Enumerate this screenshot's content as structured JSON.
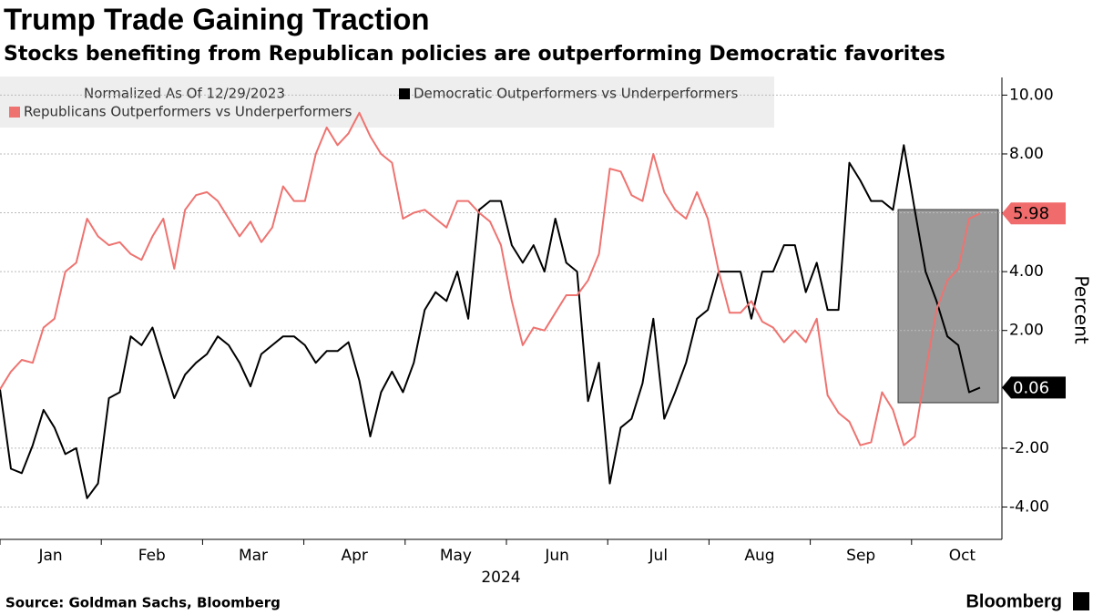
{
  "chart_data": {
    "type": "line",
    "title": "Trump Trade Gaining Traction",
    "subtitle": "Stocks benefiting from Republican policies are outperforming Democratic favorites",
    "legend_title": "Normalized As Of 12/29/2023",
    "ylabel": "Percent",
    "xlabel": "2024",
    "xticks": [
      "Jan",
      "Feb",
      "Mar",
      "Apr",
      "May",
      "Jun",
      "Jul",
      "Aug",
      "Sep",
      "Oct"
    ],
    "ylim": [
      -5.1,
      10.6
    ],
    "yticks": [
      {
        "value": -4,
        "label": "-4.00"
      },
      {
        "value": -2,
        "label": "-2.00"
      },
      {
        "value": 2,
        "label": "2.00"
      },
      {
        "value": 4,
        "label": "4.00"
      },
      {
        "value": 6,
        "label": "6.00"
      },
      {
        "value": 8,
        "label": "8.00"
      },
      {
        "value": 10,
        "label": "10.00"
      }
    ],
    "grid": true,
    "series": [
      {
        "name": "Democratic Outperformers vs Underperformers",
        "color": "#000000",
        "values": [
          0,
          -2.7,
          -2.85,
          -1.9,
          -0.7,
          -1.3,
          -2.2,
          -2.0,
          -3.7,
          -3.2,
          -0.3,
          -0.1,
          1.8,
          1.5,
          2.1,
          0.9,
          -0.3,
          0.5,
          0.9,
          1.2,
          1.8,
          1.5,
          0.9,
          0.1,
          1.2,
          1.5,
          1.8,
          1.8,
          1.5,
          0.9,
          1.3,
          1.3,
          1.6,
          0.3,
          -1.6,
          -0.1,
          0.6,
          -0.1,
          0.9,
          2.7,
          3.3,
          3.0,
          4.0,
          2.4,
          6.1,
          6.4,
          6.4,
          4.9,
          4.3,
          4.9,
          4.0,
          5.8,
          4.3,
          4.0,
          -0.4,
          0.9,
          -3.2,
          -1.3,
          -1.0,
          0.2,
          2.4,
          -1.0,
          -0.1,
          0.9,
          2.4,
          2.7,
          4.0,
          4.0,
          4.0,
          2.4,
          4.0,
          4.0,
          4.9,
          4.9,
          3.3,
          4.3,
          2.7,
          2.7,
          7.7,
          7.1,
          6.4,
          6.4,
          6.1,
          8.3,
          6.1,
          4.0,
          3.0,
          1.8,
          1.5,
          -0.1,
          0.06
        ]
      },
      {
        "name": "Republicans Outperformers vs Underperformers",
        "color": "#ee7370",
        "values": [
          0,
          0.6,
          1.0,
          0.9,
          2.1,
          2.4,
          4.0,
          4.3,
          5.8,
          5.2,
          4.9,
          5.0,
          4.6,
          4.4,
          5.2,
          5.8,
          4.1,
          6.1,
          6.6,
          6.7,
          6.4,
          5.8,
          5.2,
          5.7,
          5.0,
          5.5,
          6.9,
          6.4,
          6.4,
          8.0,
          8.9,
          8.3,
          8.7,
          9.4,
          8.6,
          8.0,
          7.7,
          5.8,
          6.0,
          6.1,
          5.8,
          5.5,
          6.4,
          6.4,
          6.0,
          5.7,
          4.9,
          3.0,
          1.5,
          2.1,
          2.0,
          2.6,
          3.2,
          3.2,
          3.7,
          4.6,
          7.5,
          7.4,
          6.6,
          6.4,
          8.0,
          6.7,
          6.1,
          5.8,
          6.7,
          5.8,
          4.0,
          2.6,
          2.6,
          3.0,
          2.3,
          2.1,
          1.6,
          2.0,
          1.6,
          2.4,
          -0.2,
          -0.8,
          -1.1,
          -1.9,
          -1.8,
          -0.1,
          -0.7,
          -1.9,
          -1.6,
          0.6,
          2.7,
          3.7,
          4.1,
          5.8,
          5.98
        ]
      }
    ]
  },
  "source": "Source: Goldman Sachs, Bloomberg",
  "logo": "Bloomberg"
}
